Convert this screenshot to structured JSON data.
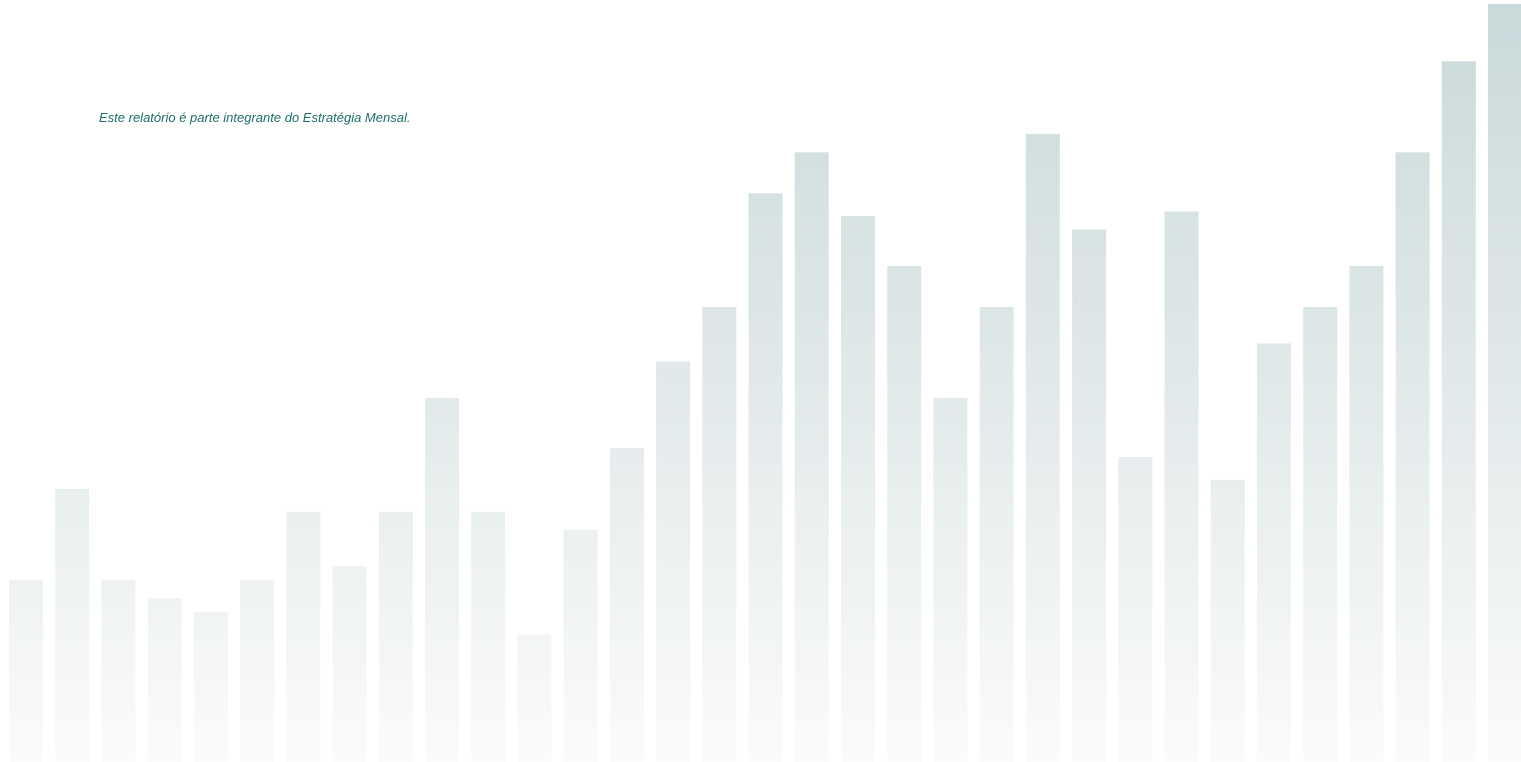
{
  "document": {
    "note": "Este relatório é parte integrante do Estratégia Mensal."
  },
  "decor": {
    "bar_levels": [
      0.4,
      0.6,
      0.4,
      0.36,
      0.33,
      0.4,
      0.55,
      0.43,
      0.55,
      0.8,
      0.55,
      0.28,
      0.51,
      0.69,
      0.88,
      1.0,
      1.25,
      1.34,
      1.2,
      1.09,
      0.8,
      1.0,
      1.38,
      1.17,
      0.67,
      1.21,
      0.62,
      0.92,
      1.0,
      1.09,
      1.34,
      1.54,
      1.68
    ],
    "bar_color_top": "#c9d9da",
    "bar_color_bottom": "#fbfbfb",
    "text_color": "#1e6e6a"
  }
}
